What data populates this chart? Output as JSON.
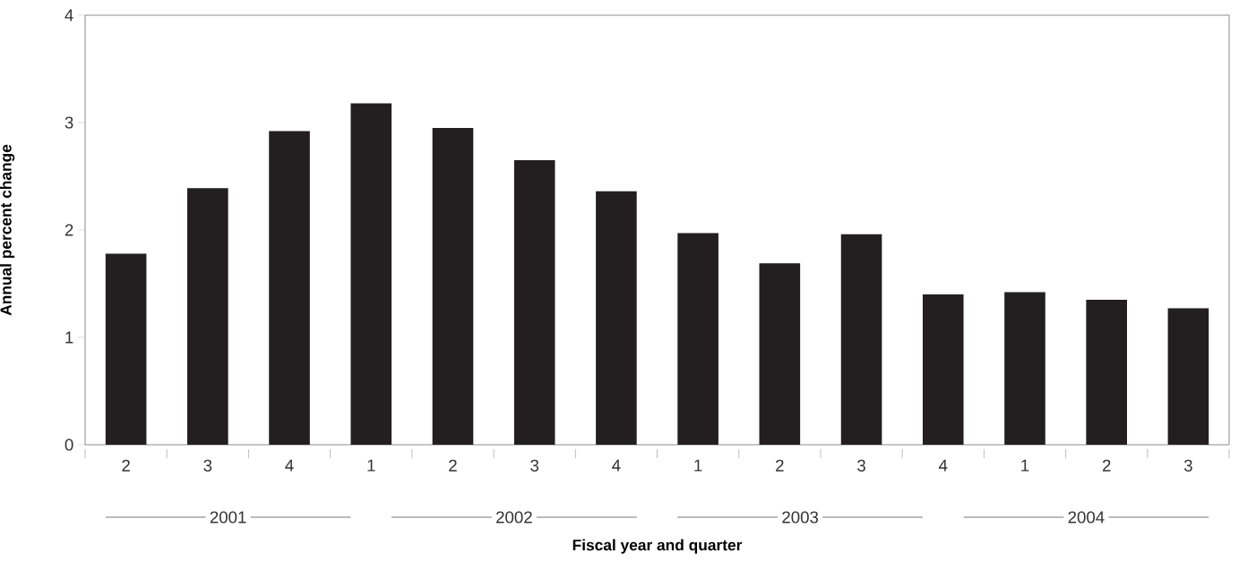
{
  "chart_data": {
    "type": "bar",
    "xlabel": "Fiscal year and quarter",
    "ylabel": "Annual percent change",
    "categories": [
      "2",
      "3",
      "4",
      "1",
      "2",
      "3",
      "4",
      "1",
      "2",
      "3",
      "4",
      "1",
      "2",
      "3"
    ],
    "values": [
      1.78,
      2.39,
      2.92,
      3.18,
      2.95,
      2.65,
      2.36,
      1.97,
      1.69,
      1.96,
      1.4,
      1.42,
      1.35,
      1.27
    ],
    "color": "#231f20",
    "ylim": [
      0,
      4
    ],
    "yticks": [
      0,
      1,
      2,
      3,
      4
    ],
    "annotations": [
      "2001",
      "2002",
      "2003",
      "2004"
    ]
  }
}
